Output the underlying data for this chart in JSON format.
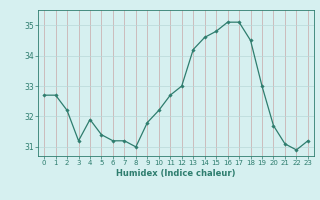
{
  "x": [
    0,
    1,
    2,
    3,
    4,
    5,
    6,
    7,
    8,
    9,
    10,
    11,
    12,
    13,
    14,
    15,
    16,
    17,
    18,
    19,
    20,
    21,
    22,
    23
  ],
  "y": [
    32.7,
    32.7,
    32.2,
    31.2,
    31.9,
    31.4,
    31.2,
    31.2,
    31.0,
    31.8,
    32.2,
    32.7,
    33.0,
    34.2,
    34.6,
    34.8,
    35.1,
    35.1,
    34.5,
    33.0,
    31.7,
    31.1,
    30.9,
    31.2
  ],
  "line_color": "#2e7d6e",
  "marker": "D",
  "marker_size": 1.8,
  "background_color": "#d6f0f0",
  "grid_color": "#b8d8d8",
  "grid_color_v": "#c8a8a8",
  "xlabel": "Humidex (Indice chaleur)",
  "ylim": [
    30.7,
    35.5
  ],
  "xlim": [
    -0.5,
    23.5
  ],
  "yticks": [
    31,
    32,
    33,
    34,
    35
  ],
  "xticks": [
    0,
    1,
    2,
    3,
    4,
    5,
    6,
    7,
    8,
    9,
    10,
    11,
    12,
    13,
    14,
    15,
    16,
    17,
    18,
    19,
    20,
    21,
    22,
    23
  ],
  "tick_color": "#2e7d6e",
  "label_color": "#2e7d6e",
  "spine_color": "#2e7d6e",
  "tick_fontsize": 5.0,
  "xlabel_fontsize": 6.0
}
